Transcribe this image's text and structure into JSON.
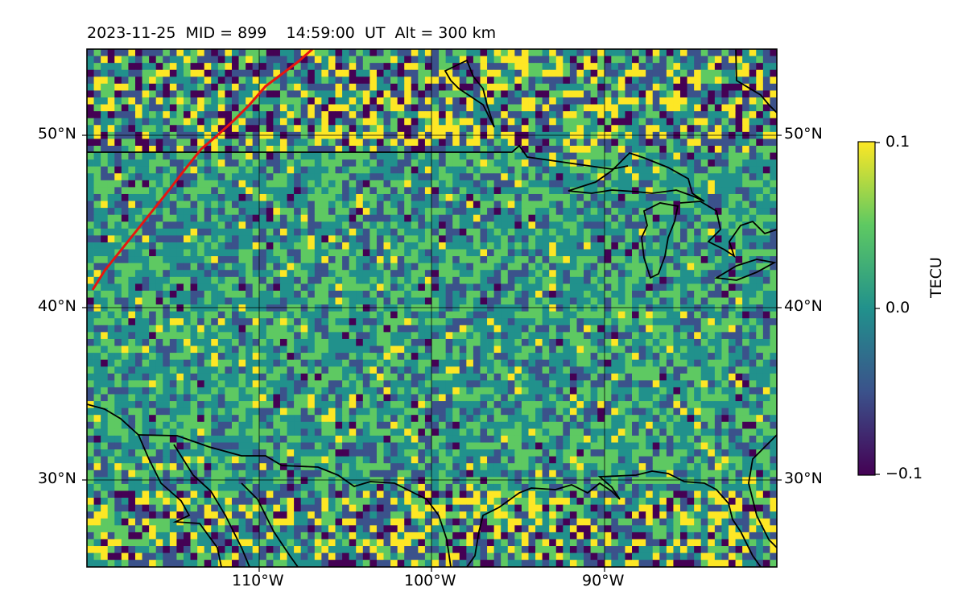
{
  "map": {
    "title": "2023-11-25  MID = 899    14:59:00  UT  Alt = 300 km",
    "lat_labels": [
      "50°N",
      "40°N",
      "30°N"
    ],
    "lon_labels": [
      "110°W",
      "100°W",
      "90°W"
    ],
    "extent": {
      "lon_min": -120,
      "lon_max": -80,
      "lat_min": 25,
      "lat_max": 55
    },
    "colorbar": {
      "label": "TECU",
      "ticks": [
        "0.1",
        "0.0",
        "−0.1"
      ],
      "colormap": "viridis",
      "colors": [
        "#440154",
        "#3b528b",
        "#21918c",
        "#5ec962",
        "#fde725"
      ]
    },
    "track_color": "#e8150f",
    "coast_color": "#000000"
  }
}
